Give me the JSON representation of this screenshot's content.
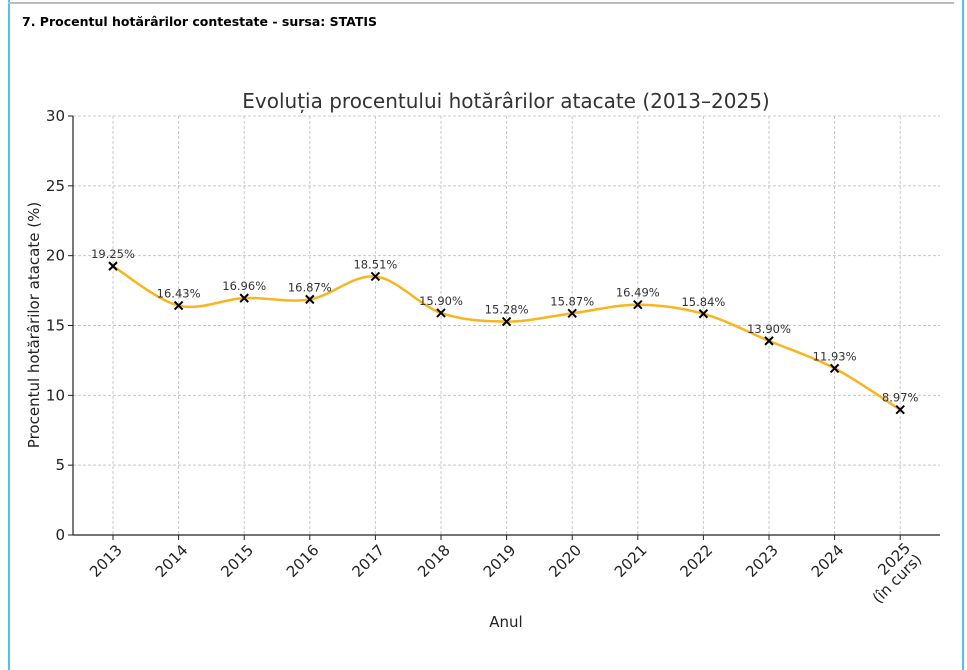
{
  "section": {
    "heading": "7. Procentul hotărârilor contestate - sursa: STATIS"
  },
  "chart_data": {
    "type": "line",
    "title": "Evoluția procentului hotărârilor atacate (2013–2025)",
    "xlabel": "Anul",
    "ylabel": "Procentul hotărârilor atacate (%)",
    "categories": [
      "2013",
      "2014",
      "2015",
      "2016",
      "2017",
      "2018",
      "2019",
      "2020",
      "2021",
      "2022",
      "2023",
      "2024",
      "2025\n(în curs)"
    ],
    "values": [
      19.25,
      16.43,
      16.96,
      16.87,
      18.51,
      15.9,
      15.28,
      15.87,
      16.49,
      15.84,
      13.9,
      11.93,
      8.97
    ],
    "data_labels": [
      "19.25%",
      "16.43%",
      "16.96%",
      "16.87%",
      "18.51%",
      "15.90%",
      "15.28%",
      "15.87%",
      "16.49%",
      "15.84%",
      "13.90%",
      "11.93%",
      "8.97%"
    ],
    "ylim": [
      0,
      30
    ],
    "yticks": [
      "0",
      "5",
      "10",
      "15",
      "20",
      "25",
      "30"
    ],
    "grid": true,
    "line_style": "smooth",
    "marker": "x",
    "line_color": "#f9b51f",
    "marker_color": "#000000"
  }
}
